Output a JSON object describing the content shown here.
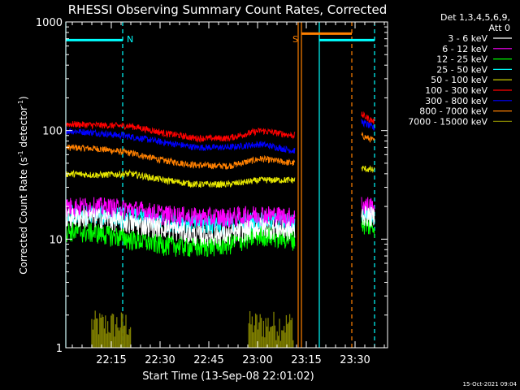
{
  "chart_data": {
    "type": "line",
    "title": "RHESSI Observing Summary Count Rates, Corrected",
    "xlabel": "Start Time (13-Sep-08 22:01:02)",
    "ylabel_main": "Corrected Count Rate (s",
    "ylabel_sup1": "-1",
    "ylabel_mid": " detector",
    "ylabel_sup2": "-1",
    "ylabel_end": ")",
    "ylog": true,
    "ylim": [
      1,
      1000
    ],
    "xlim_minutes": [
      0,
      99
    ],
    "y_ticks": [
      {
        "value": 1,
        "label": "1"
      },
      {
        "value": 10,
        "label": "10"
      },
      {
        "value": 100,
        "label": "100"
      },
      {
        "value": 1000,
        "label": "1000"
      }
    ],
    "x_ticks": [
      {
        "minute": 14,
        "label": "22:15"
      },
      {
        "minute": 29,
        "label": "22:30"
      },
      {
        "minute": 44,
        "label": "22:45"
      },
      {
        "minute": 59,
        "label": "23:00"
      },
      {
        "minute": 74,
        "label": "23:15"
      },
      {
        "minute": 89,
        "label": "23:30"
      }
    ],
    "legend_header": [
      "Det 1,3,4,5,6,9,",
      "Att 0"
    ],
    "legend_placement": "right",
    "footer_date": "15-Oct-2021 09:04",
    "markers": [
      {
        "label": "N",
        "minute": 17.5,
        "color": "#00ffff"
      },
      {
        "label": "S",
        "minute": 72,
        "color": "#ff8000"
      }
    ],
    "indicator_lines": [
      {
        "minute": 0,
        "style": "solid",
        "color": "#00ffff"
      },
      {
        "minute": 17.5,
        "style": "dashed",
        "color": "#00ffff"
      },
      {
        "minute": 71.5,
        "style": "solid",
        "color": "#ff8000"
      },
      {
        "minute": 72.5,
        "style": "solid",
        "color": "#ff8000"
      },
      {
        "minute": 78,
        "style": "solid",
        "color": "#00ffff"
      },
      {
        "minute": 88,
        "style": "dashed",
        "color": "#ff8000"
      },
      {
        "minute": 95,
        "style": "dashed",
        "color": "#00ffff"
      }
    ],
    "flag_bars": [
      {
        "color": "#00ffff",
        "x0": 0,
        "x1": 17.5,
        "y": 680
      },
      {
        "color": "#ff8000",
        "x0": 72.5,
        "x1": 88,
        "y": 780
      },
      {
        "color": "#00ffff",
        "x0": 78,
        "x1": 95,
        "y": 680
      }
    ],
    "data_gap_minutes": [
      70.5,
      91
    ],
    "series": [
      {
        "name": "3 - 6 keV",
        "color": "#ffffff",
        "x": [
          0,
          10,
          20,
          30,
          40,
          50,
          60,
          70,
          91,
          95
        ],
        "y": [
          16,
          16,
          14,
          13,
          11,
          11,
          13,
          12,
          17,
          16
        ]
      },
      {
        "name": "6 - 12 keV",
        "color": "#ff00ff",
        "x": [
          0,
          10,
          20,
          30,
          40,
          50,
          60,
          70,
          91,
          95
        ],
        "y": [
          20,
          20,
          19,
          17,
          16,
          16,
          17,
          16,
          21,
          20
        ]
      },
      {
        "name": "12 - 25 keV",
        "color": "#00ff00",
        "x": [
          0,
          10,
          20,
          30,
          40,
          50,
          60,
          70,
          91,
          95
        ],
        "y": [
          12,
          11.5,
          10,
          9,
          8.5,
          9,
          11,
          10,
          14,
          13
        ]
      },
      {
        "name": "25 - 50 keV",
        "color": "#00ffff",
        "x": [
          0,
          10,
          20,
          30,
          40,
          50,
          60,
          70,
          91,
          95
        ],
        "y": [
          17,
          17,
          16,
          15,
          14,
          14,
          15,
          14,
          18,
          17
        ]
      },
      {
        "name": "50 - 100 keV",
        "color": "#e6e600",
        "x": [
          0,
          10,
          20,
          30,
          40,
          50,
          60,
          70,
          91,
          95
        ],
        "y": [
          40,
          39,
          40,
          35,
          32,
          32,
          35,
          35,
          45,
          43
        ]
      },
      {
        "name": "100 - 300 keV",
        "color": "#ff0000",
        "x": [
          0,
          10,
          20,
          30,
          40,
          50,
          60,
          70,
          91,
          95
        ],
        "y": [
          115,
          112,
          110,
          95,
          85,
          85,
          100,
          90,
          140,
          120
        ]
      },
      {
        "name": "300 - 800 keV",
        "color": "#0000ff",
        "x": [
          0,
          10,
          20,
          30,
          40,
          50,
          60,
          70,
          91,
          95
        ],
        "y": [
          100,
          95,
          88,
          78,
          70,
          70,
          75,
          65,
          120,
          105
        ]
      },
      {
        "name": "800 - 7000 keV",
        "color": "#ff8000",
        "x": [
          0,
          10,
          20,
          30,
          40,
          50,
          60,
          70,
          91,
          95
        ],
        "y": [
          70,
          68,
          62,
          53,
          48,
          47,
          55,
          50,
          90,
          80
        ]
      },
      {
        "name": "7000 - 15000 keV",
        "color": "#808000",
        "x": [
          8,
          12,
          16,
          20,
          56,
          60,
          64,
          68,
          70
        ],
        "y": [
          1.8,
          1.8,
          1.8,
          1.8,
          1.8,
          1.8,
          1.8,
          1.8,
          1.8
        ]
      }
    ]
  }
}
